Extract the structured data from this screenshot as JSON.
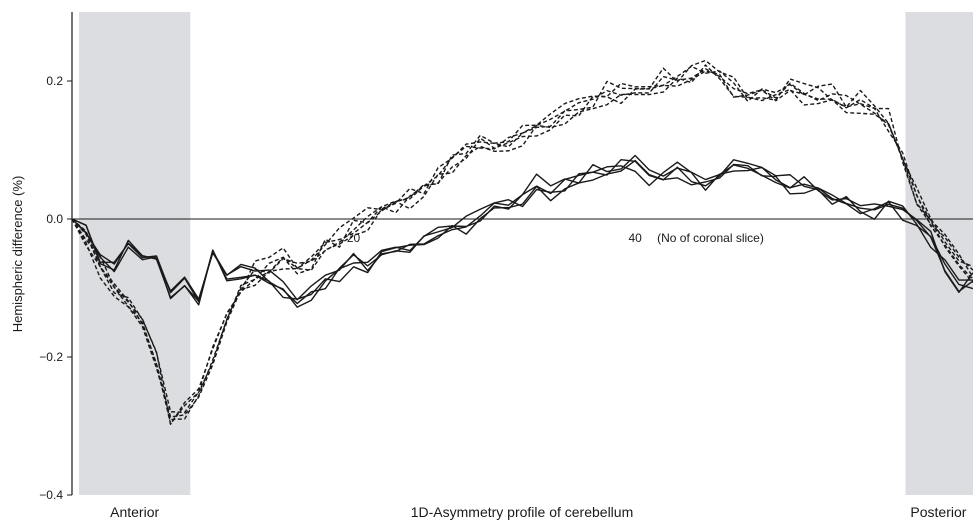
{
  "chart_data": {
    "type": "line",
    "title": "",
    "xlabel": "1D-Asymmetry profile of cerebellum",
    "ylabel": "Hemispheric difference (%)",
    "x_annotation": "(No of coronal slice)",
    "region_labels": {
      "left": "Anterior",
      "right": "Posterior"
    },
    "xlim": [
      0,
      64
    ],
    "ylim": [
      -0.4,
      0.3
    ],
    "x_ticks": [
      20,
      40
    ],
    "y_ticks": [
      {
        "value": -0.4,
        "label": "−0.4"
      },
      {
        "value": -0.2,
        "label": "−0.2"
      },
      {
        "value": 0.0,
        "label": "0.0"
      },
      {
        "value": 0.2,
        "label": "0.2"
      }
    ],
    "shaded_regions": [
      {
        "from": 0.5,
        "to": 8.4
      },
      {
        "from": 59.2,
        "to": 64
      }
    ],
    "grid": false,
    "line_color": "#1a1a1a",
    "shade_color": "#dcdde0",
    "solid_profile": [
      0.0,
      -0.01,
      -0.06,
      -0.07,
      -0.04,
      -0.05,
      -0.06,
      -0.11,
      -0.09,
      -0.12,
      -0.05,
      -0.09,
      -0.08,
      -0.08,
      -0.09,
      -0.1,
      -0.12,
      -0.11,
      -0.09,
      -0.08,
      -0.06,
      -0.07,
      -0.05,
      -0.04,
      -0.04,
      -0.03,
      -0.02,
      -0.01,
      -0.01,
      0.0,
      0.02,
      0.02,
      0.03,
      0.05,
      0.04,
      0.05,
      0.06,
      0.07,
      0.07,
      0.08,
      0.08,
      0.06,
      0.06,
      0.07,
      0.06,
      0.05,
      0.07,
      0.08,
      0.08,
      0.07,
      0.06,
      0.05,
      0.05,
      0.04,
      0.03,
      0.02,
      0.01,
      0.01,
      0.02,
      0.01,
      0.0,
      -0.03,
      -0.07,
      -0.1,
      -0.09
    ],
    "dashed_profile": [
      0.0,
      -0.03,
      -0.07,
      -0.1,
      -0.12,
      -0.15,
      -0.2,
      -0.29,
      -0.28,
      -0.25,
      -0.2,
      -0.15,
      -0.1,
      -0.08,
      -0.07,
      -0.06,
      -0.07,
      -0.06,
      -0.04,
      -0.03,
      -0.01,
      0.0,
      0.01,
      0.02,
      0.03,
      0.04,
      0.06,
      0.08,
      0.1,
      0.11,
      0.1,
      0.11,
      0.12,
      0.13,
      0.14,
      0.15,
      0.16,
      0.17,
      0.18,
      0.18,
      0.19,
      0.19,
      0.2,
      0.2,
      0.21,
      0.22,
      0.21,
      0.19,
      0.18,
      0.18,
      0.18,
      0.19,
      0.18,
      0.18,
      0.18,
      0.17,
      0.17,
      0.16,
      0.14,
      0.09,
      0.03,
      0.0,
      -0.03,
      -0.06,
      -0.08
    ],
    "series": [
      {
        "style": "solid",
        "offset": 0.0,
        "noise": 0.008,
        "seed": 1
      },
      {
        "style": "solid",
        "offset": 0.004,
        "noise": 0.012,
        "seed": 2
      },
      {
        "style": "solid",
        "offset": -0.004,
        "noise": 0.01,
        "seed": 3
      },
      {
        "style": "solid",
        "offset": 0.002,
        "noise": 0.014,
        "seed": 4
      },
      {
        "style": "dashed",
        "offset": 0.0,
        "noise": 0.01,
        "seed": 5
      },
      {
        "style": "dashed",
        "offset": 0.006,
        "noise": 0.014,
        "seed": 6
      },
      {
        "style": "dashed",
        "offset": -0.006,
        "noise": 0.012,
        "seed": 7
      },
      {
        "style": "dashed",
        "offset": 0.003,
        "noise": 0.016,
        "seed": 8
      },
      {
        "style": "dashed",
        "offset": -0.003,
        "noise": 0.011,
        "seed": 9
      }
    ]
  }
}
